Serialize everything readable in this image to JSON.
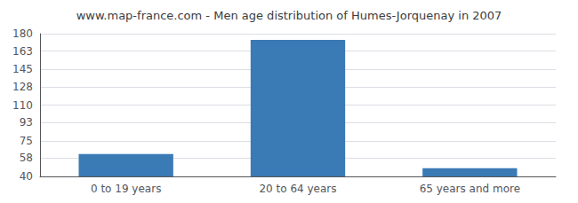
{
  "chart_data": {
    "type": "bar",
    "title": "www.map-france.com - Men age distribution of Humes-Jorquenay in 2007",
    "categories": [
      "0 to 19 years",
      "20 to 64 years",
      "65 years and more"
    ],
    "values": [
      62,
      174,
      48
    ],
    "color": "#3a7ab5",
    "ylim": [
      40,
      180
    ],
    "yticks": [
      40,
      58,
      75,
      93,
      110,
      128,
      145,
      163,
      180
    ],
    "grid": true
  }
}
